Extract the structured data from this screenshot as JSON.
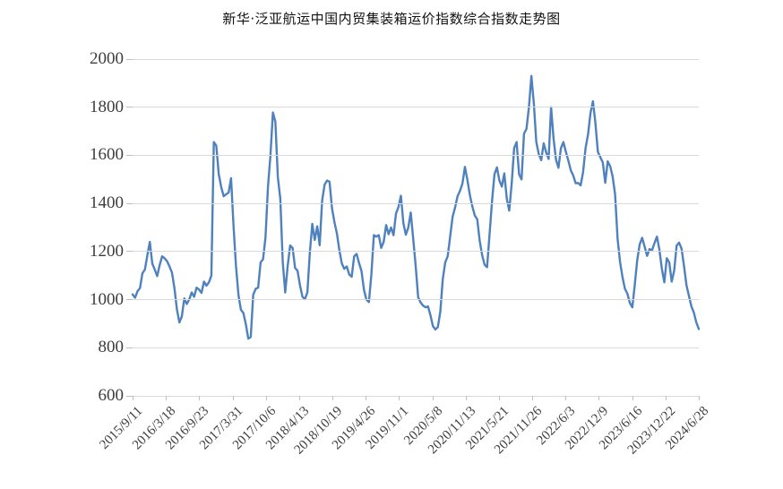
{
  "page": {
    "background": "#ffffff"
  },
  "chart_data": {
    "type": "line",
    "title": "新华·泛亚航运中国内贸集装箱运价指数综合指数走势图",
    "xlabel": "",
    "ylabel": "",
    "ylim": [
      600,
      2000
    ],
    "y_ticks": [
      600,
      800,
      1000,
      1200,
      1400,
      1600,
      1800,
      2000
    ],
    "grid": "horizontal",
    "legend": "none",
    "x_labels": [
      "2015/9/11",
      "2016/3/18",
      "2016/9/23",
      "2017/3/31",
      "2017/10/6",
      "2018/4/13",
      "2018/10/19",
      "2019/4/26",
      "2019/11/1",
      "2020/5/8",
      "2020/11/13",
      "2021/5/21",
      "2021/11/26",
      "2022/6/3",
      "2022/12/9",
      "2023/6/16",
      "2023/12/22",
      "2024/6/28"
    ],
    "x_label_interval_weeks": 27,
    "sample_interval_weeks": 2,
    "colors": {
      "line": "#4e81bd",
      "grid": "#d9d9d9",
      "axis_ticks": "#bfbfbf",
      "labels": "#3d3d3d",
      "title": "#111111"
    },
    "values": [
      1022,
      1008,
      1035,
      1048,
      1110,
      1125,
      1185,
      1240,
      1150,
      1125,
      1098,
      1144,
      1180,
      1172,
      1160,
      1138,
      1112,
      1048,
      960,
      905,
      930,
      1005,
      982,
      1000,
      1030,
      1012,
      1050,
      1042,
      1028,
      1075,
      1058,
      1072,
      1100,
      1655,
      1640,
      1522,
      1468,
      1430,
      1438,
      1445,
      1505,
      1307,
      1140,
      1020,
      958,
      945,
      898,
      838,
      845,
      1020,
      1045,
      1050,
      1155,
      1168,
      1260,
      1470,
      1600,
      1778,
      1740,
      1510,
      1420,
      1155,
      1030,
      1140,
      1225,
      1215,
      1132,
      1120,
      1060,
      1012,
      1002,
      1030,
      1195,
      1315,
      1248,
      1305,
      1226,
      1412,
      1478,
      1495,
      1490,
      1380,
      1322,
      1275,
      1205,
      1150,
      1128,
      1138,
      1105,
      1095,
      1180,
      1190,
      1152,
      1118,
      1040,
      1000,
      990,
      1105,
      1268,
      1262,
      1268,
      1215,
      1240,
      1310,
      1272,
      1300,
      1268,
      1358,
      1385,
      1432,
      1318,
      1270,
      1300,
      1362,
      1252,
      1140,
      1010,
      988,
      975,
      968,
      972,
      935,
      890,
      876,
      886,
      950,
      1085,
      1155,
      1180,
      1262,
      1345,
      1383,
      1430,
      1452,
      1483,
      1552,
      1498,
      1435,
      1388,
      1350,
      1334,
      1245,
      1185,
      1145,
      1135,
      1270,
      1408,
      1521,
      1550,
      1495,
      1470,
      1525,
      1420,
      1370,
      1483,
      1630,
      1655,
      1521,
      1500,
      1690,
      1710,
      1800,
      1930,
      1815,
      1655,
      1605,
      1580,
      1650,
      1612,
      1585,
      1800,
      1670,
      1582,
      1548,
      1630,
      1655,
      1615,
      1578,
      1538,
      1516,
      1484,
      1485,
      1475,
      1530,
      1630,
      1686,
      1775,
      1825,
      1735,
      1615,
      1592,
      1571,
      1486,
      1575,
      1555,
      1512,
      1438,
      1255,
      1158,
      1094,
      1045,
      1025,
      986,
      968,
      1062,
      1165,
      1230,
      1257,
      1220,
      1182,
      1210,
      1205,
      1235,
      1262,
      1208,
      1128,
      1072,
      1172,
      1155,
      1075,
      1120,
      1225,
      1237,
      1212,
      1140,
      1060,
      1015,
      972,
      946,
      905,
      878
    ]
  }
}
